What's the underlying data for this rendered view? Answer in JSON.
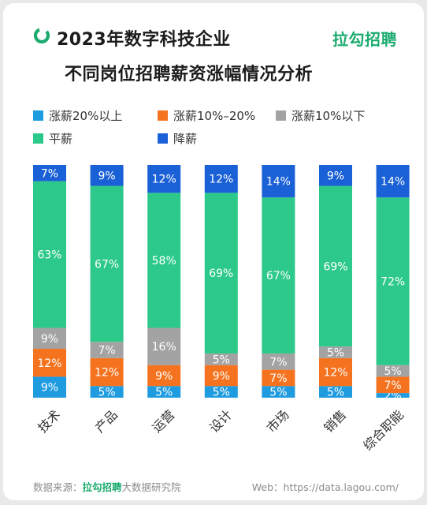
{
  "header": {
    "title_line1": "2023年数字科技企业",
    "title_line2": "不同岗位招聘薪资涨幅情况分析",
    "brand": "拉勾招聘"
  },
  "footer": {
    "source_prefix": "数据来源：",
    "source_brand": "拉勾招聘",
    "source_suffix": "大数据研究院",
    "web_label": "Web：",
    "web_url": "https://data.lagou.com/"
  },
  "colors": {
    "raise_20_plus": "#1f9be0",
    "raise_10_20": "#f5731f",
    "raise_under_10": "#a3a3a3",
    "flat": "#2dc98a",
    "decrease": "#1a60d6",
    "brand_green": "#1aab6e"
  },
  "chart_data": {
    "type": "bar",
    "stacked": true,
    "percent_axis": true,
    "categories": [
      "技术",
      "产品",
      "运营",
      "设计",
      "市场",
      "销售",
      "综合职能"
    ],
    "series": [
      {
        "name": "涨薪20%以上",
        "color": "#1f9be0",
        "values": [
          9,
          5,
          5,
          5,
          5,
          5,
          2
        ]
      },
      {
        "name": "涨薪10%–20%",
        "color": "#f5731f",
        "values": [
          12,
          12,
          9,
          9,
          7,
          12,
          7
        ]
      },
      {
        "name": "涨薪10%以下",
        "color": "#a3a3a3",
        "values": [
          9,
          7,
          16,
          5,
          7,
          5,
          5
        ]
      },
      {
        "name": "平薪",
        "color": "#2dc98a",
        "values": [
          63,
          67,
          58,
          69,
          67,
          69,
          72
        ]
      },
      {
        "name": "降薪",
        "color": "#1a60d6",
        "values": [
          7,
          9,
          12,
          12,
          14,
          9,
          14
        ]
      }
    ],
    "legend_position": "top",
    "grid": false
  }
}
